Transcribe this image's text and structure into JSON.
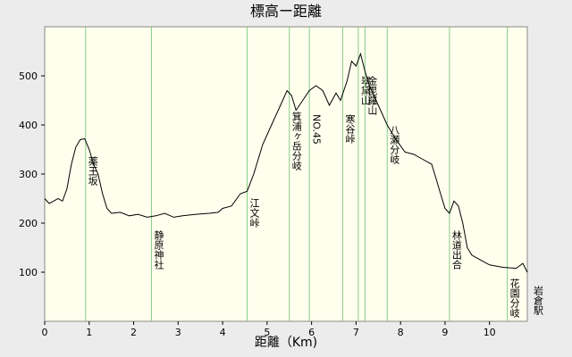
{
  "chart_data": {
    "type": "line",
    "title": "標高ー距離",
    "x_label": "距離（Km)",
    "x": [
      0,
      0.1,
      0.2,
      0.3,
      0.4,
      0.5,
      0.6,
      0.7,
      0.8,
      0.9,
      1.0,
      1.1,
      1.2,
      1.3,
      1.4,
      1.5,
      1.7,
      1.9,
      2.1,
      2.3,
      2.5,
      2.7,
      2.9,
      3.1,
      3.4,
      3.7,
      3.9,
      4.0,
      4.2,
      4.4,
      4.55,
      4.7,
      4.9,
      5.1,
      5.3,
      5.45,
      5.55,
      5.65,
      5.8,
      5.95,
      6.1,
      6.25,
      6.4,
      6.55,
      6.65,
      6.8,
      6.9,
      7.0,
      7.1,
      7.2,
      7.3,
      7.5,
      7.7,
      7.9,
      8.1,
      8.3,
      8.5,
      8.7,
      8.8,
      8.9,
      9.0,
      9.1,
      9.2,
      9.3,
      9.4,
      9.5,
      9.6,
      9.8,
      10.0,
      10.3,
      10.6,
      10.75,
      10.85
    ],
    "series": [
      {
        "color": "#000000",
        "values": [
          250,
          240,
          245,
          250,
          245,
          270,
          320,
          355,
          370,
          372,
          350,
          320,
          300,
          260,
          230,
          220,
          222,
          215,
          218,
          212,
          215,
          220,
          212,
          215,
          218,
          220,
          222,
          230,
          235,
          260,
          265,
          300,
          360,
          400,
          440,
          470,
          460,
          430,
          450,
          470,
          480,
          470,
          440,
          465,
          450,
          490,
          530,
          520,
          545,
          510,
          480,
          440,
          400,
          370,
          345,
          340,
          330,
          320,
          290,
          260,
          230,
          220,
          245,
          235,
          200,
          150,
          135,
          125,
          115,
          110,
          108,
          118,
          100
        ]
      }
    ],
    "annotations": [
      {
        "text": "薬王坂",
        "x": 0.92
      },
      {
        "text": "静原神社",
        "x": 2.4
      },
      {
        "text": "江文峠",
        "x": 4.55
      },
      {
        "text": "箕浦ヶ岳分岐",
        "x": 5.5
      },
      {
        "text": "NO.45",
        "x": 5.95
      },
      {
        "text": "寒谷峠",
        "x": 6.7
      },
      {
        "text": "翠黛山",
        "x": 7.05
      },
      {
        "text": "金毘羅山",
        "x": 7.2
      },
      {
        "text": "八瀬分岐",
        "x": 7.7
      },
      {
        "text": "林道出合",
        "x": 9.1
      },
      {
        "text": "花園分岐",
        "x": 10.4
      },
      {
        "text": "岩倉駅",
        "x": 10.85
      }
    ],
    "xlim": [
      0,
      10.85
    ],
    "ylim": [
      0,
      600
    ],
    "xticks": [
      0,
      1,
      2,
      3,
      4,
      5,
      6,
      7,
      8,
      9,
      10
    ],
    "yticks": [
      100,
      200,
      300,
      400,
      500
    ]
  }
}
